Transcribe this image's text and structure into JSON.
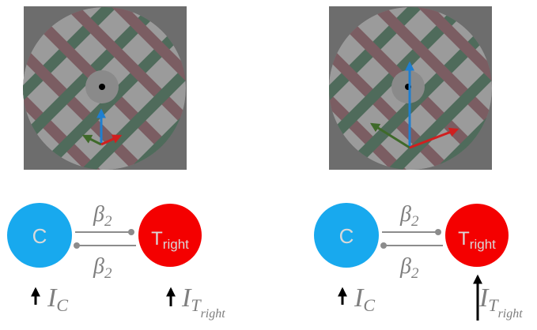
{
  "panels": [
    {
      "node_left": "C",
      "node_right": {
        "label": "T",
        "subscript": "right"
      },
      "coupling_top": {
        "symbol": "β",
        "subscript": "2"
      },
      "coupling_bottom": {
        "symbol": "β",
        "subscript": "2"
      },
      "input_left": {
        "symbol": "I",
        "subscript": "C"
      },
      "input_right": {
        "symbol": "I",
        "subscript": "T",
        "sub_subscript": "right"
      }
    },
    {
      "node_left": "C",
      "node_right": {
        "label": "T",
        "subscript": "right"
      },
      "coupling_top": {
        "symbol": "β",
        "subscript": "2"
      },
      "coupling_bottom": {
        "symbol": "β",
        "subscript": "2"
      },
      "input_left": {
        "symbol": "I",
        "subscript": "C"
      },
      "input_right": {
        "symbol": "I",
        "subscript": "T",
        "sub_subscript": "right"
      }
    }
  ]
}
